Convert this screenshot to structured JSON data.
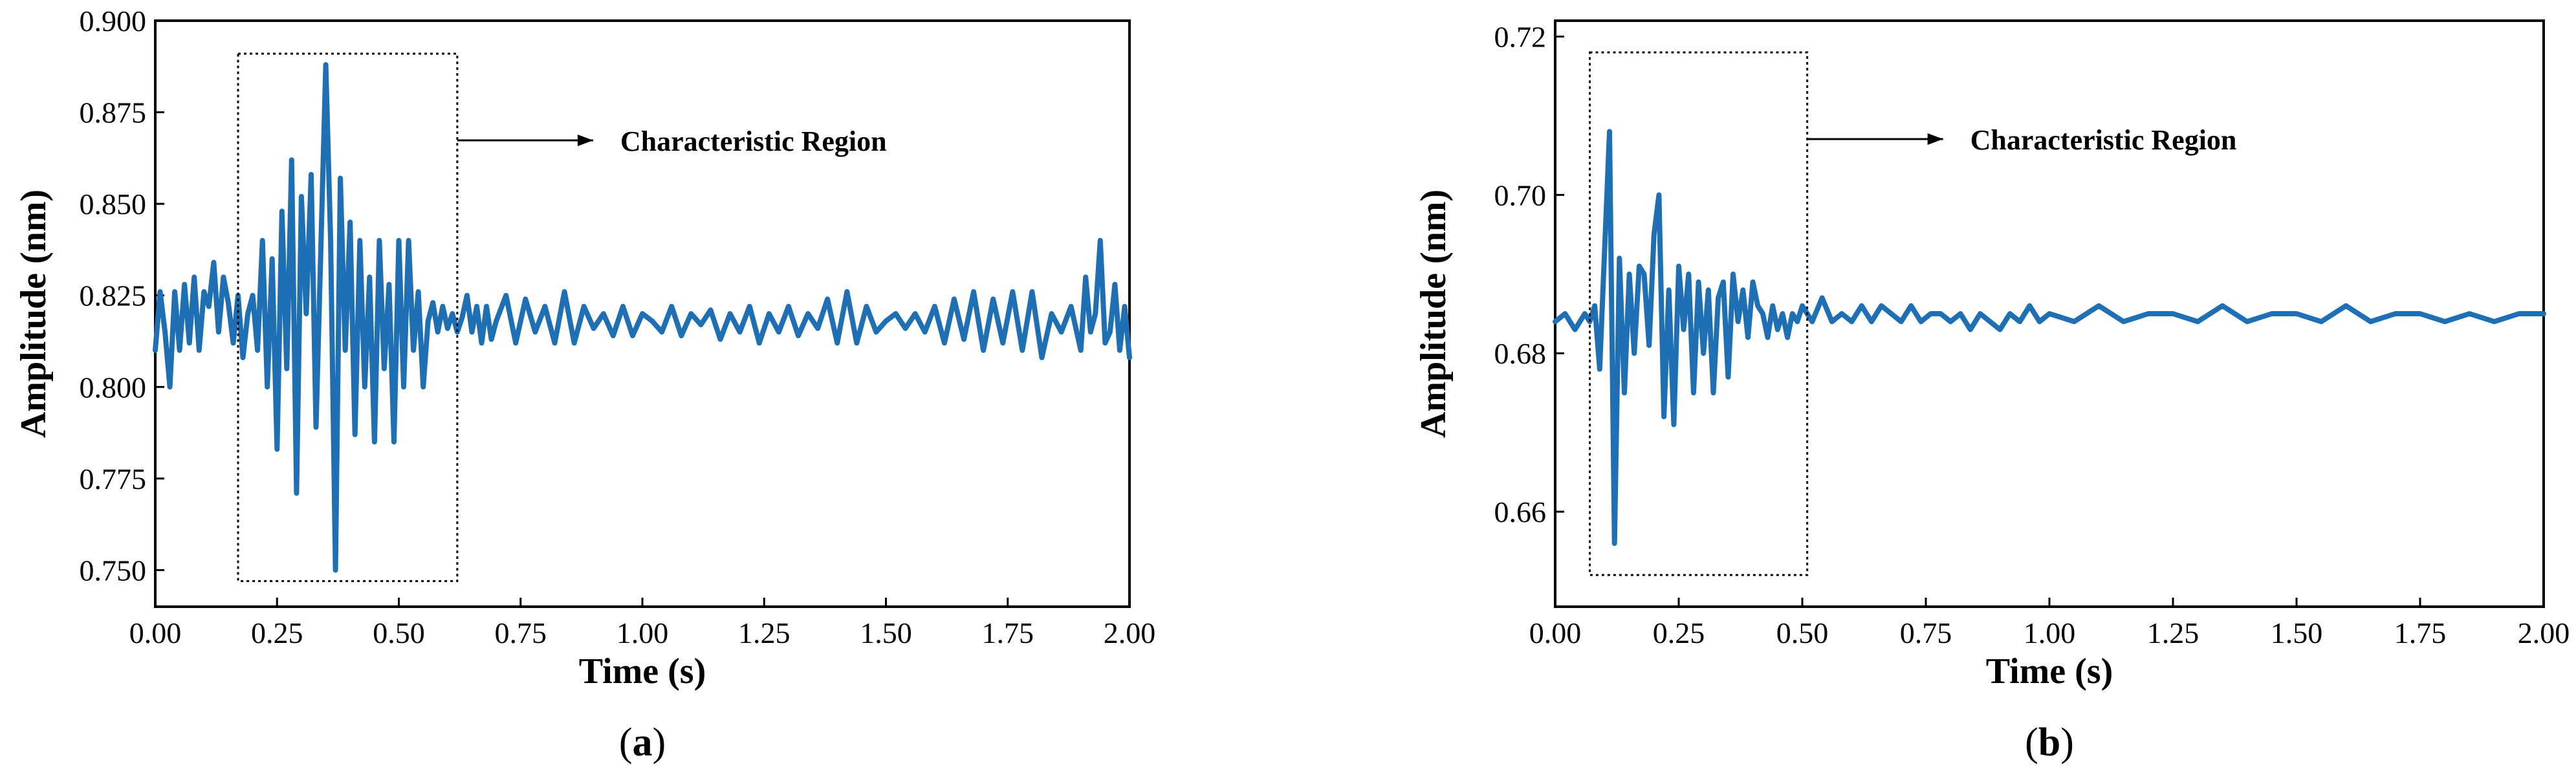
{
  "colors": {
    "series": "#1f6fb4",
    "axis": "#000000",
    "background": "#ffffff"
  },
  "chart_data": [
    {
      "panel_label_letter": "a",
      "type": "line",
      "xlabel": "Time (s)",
      "ylabel": "Amplitude (nm)",
      "xlim": [
        0,
        2
      ],
      "ylim": [
        0.74,
        0.9
      ],
      "xticks": [
        "0.00",
        "0.25",
        "0.50",
        "0.75",
        "1.00",
        "1.25",
        "1.50",
        "1.75",
        "2.00"
      ],
      "yticks": [
        "0.750",
        "0.775",
        "0.800",
        "0.825",
        "0.850",
        "0.875",
        "0.900"
      ],
      "annotation": {
        "text": "Characteristic Region",
        "region_x": [
          0.17,
          0.62
        ],
        "region_y": [
          0.747,
          0.891
        ]
      },
      "grid": false,
      "series": [
        {
          "x": [
            0,
            0.01,
            0.02,
            0.03,
            0.04,
            0.05,
            0.06,
            0.07,
            0.08,
            0.09,
            0.1,
            0.11,
            0.12,
            0.13,
            0.14,
            0.15,
            0.16,
            0.17,
            0.18,
            0.19,
            0.2,
            0.21,
            0.22,
            0.23,
            0.24,
            0.25,
            0.26,
            0.27,
            0.28,
            0.29,
            0.3,
            0.31,
            0.32,
            0.33,
            0.34,
            0.35,
            0.36,
            0.37,
            0.38,
            0.39,
            0.4,
            0.41,
            0.42,
            0.43,
            0.44,
            0.45,
            0.46,
            0.47,
            0.48,
            0.49,
            0.5,
            0.51,
            0.52,
            0.53,
            0.54,
            0.55,
            0.56,
            0.57,
            0.58,
            0.59,
            0.6,
            0.61,
            0.62,
            0.63,
            0.64,
            0.65,
            0.66,
            0.67,
            0.68,
            0.69,
            0.7,
            0.72,
            0.74,
            0.76,
            0.78,
            0.8,
            0.82,
            0.84,
            0.86,
            0.88,
            0.9,
            0.92,
            0.94,
            0.96,
            0.98,
            1.0,
            1.02,
            1.04,
            1.06,
            1.08,
            1.1,
            1.12,
            1.14,
            1.16,
            1.18,
            1.2,
            1.22,
            1.24,
            1.26,
            1.28,
            1.3,
            1.32,
            1.34,
            1.36,
            1.38,
            1.4,
            1.42,
            1.44,
            1.46,
            1.48,
            1.5,
            1.52,
            1.54,
            1.56,
            1.58,
            1.6,
            1.62,
            1.64,
            1.66,
            1.68,
            1.7,
            1.72,
            1.74,
            1.76,
            1.78,
            1.8,
            1.82,
            1.84,
            1.86,
            1.88,
            1.9,
            1.91,
            1.92,
            1.93,
            1.94,
            1.95,
            1.96,
            1.97,
            1.98,
            1.99,
            2.0
          ],
          "y": [
            0.81,
            0.826,
            0.815,
            0.8,
            0.826,
            0.81,
            0.828,
            0.812,
            0.83,
            0.81,
            0.826,
            0.822,
            0.834,
            0.815,
            0.83,
            0.823,
            0.812,
            0.825,
            0.808,
            0.82,
            0.825,
            0.81,
            0.84,
            0.8,
            0.835,
            0.783,
            0.848,
            0.805,
            0.862,
            0.771,
            0.852,
            0.82,
            0.858,
            0.789,
            0.838,
            0.888,
            0.84,
            0.75,
            0.857,
            0.81,
            0.845,
            0.787,
            0.84,
            0.8,
            0.83,
            0.785,
            0.84,
            0.805,
            0.828,
            0.785,
            0.84,
            0.8,
            0.84,
            0.81,
            0.826,
            0.8,
            0.818,
            0.823,
            0.815,
            0.822,
            0.816,
            0.82,
            0.815,
            0.819,
            0.825,
            0.815,
            0.822,
            0.812,
            0.822,
            0.813,
            0.818,
            0.825,
            0.812,
            0.824,
            0.815,
            0.822,
            0.812,
            0.826,
            0.812,
            0.822,
            0.816,
            0.82,
            0.814,
            0.822,
            0.814,
            0.82,
            0.818,
            0.815,
            0.822,
            0.814,
            0.82,
            0.817,
            0.821,
            0.813,
            0.82,
            0.815,
            0.822,
            0.812,
            0.82,
            0.815,
            0.822,
            0.814,
            0.82,
            0.816,
            0.824,
            0.812,
            0.826,
            0.812,
            0.822,
            0.815,
            0.818,
            0.82,
            0.816,
            0.82,
            0.815,
            0.822,
            0.812,
            0.824,
            0.813,
            0.826,
            0.81,
            0.824,
            0.812,
            0.826,
            0.81,
            0.826,
            0.808,
            0.82,
            0.815,
            0.822,
            0.81,
            0.83,
            0.815,
            0.82,
            0.84,
            0.812,
            0.815,
            0.828,
            0.81,
            0.822,
            0.808
          ]
        }
      ]
    },
    {
      "panel_label_letter": "b",
      "type": "line",
      "xlabel": "Time (s)",
      "ylabel": "Amplitude (nm)",
      "xlim": [
        0,
        2
      ],
      "ylim": [
        0.648,
        0.722
      ],
      "xticks": [
        "0.00",
        "0.25",
        "0.50",
        "0.75",
        "1.00",
        "1.25",
        "1.50",
        "1.75",
        "2.00"
      ],
      "yticks": [
        "0.66",
        "0.68",
        "0.70",
        "0.72"
      ],
      "annotation": {
        "text": "Characteristic Region",
        "region_x": [
          0.07,
          0.51
        ],
        "region_y": [
          0.652,
          0.718
        ]
      },
      "grid": false,
      "series": [
        {
          "x": [
            0,
            0.02,
            0.04,
            0.06,
            0.07,
            0.08,
            0.09,
            0.1,
            0.11,
            0.12,
            0.13,
            0.14,
            0.15,
            0.16,
            0.17,
            0.18,
            0.19,
            0.2,
            0.21,
            0.22,
            0.23,
            0.24,
            0.25,
            0.26,
            0.27,
            0.28,
            0.29,
            0.3,
            0.31,
            0.32,
            0.33,
            0.34,
            0.35,
            0.36,
            0.37,
            0.38,
            0.39,
            0.4,
            0.41,
            0.42,
            0.43,
            0.44,
            0.45,
            0.46,
            0.47,
            0.48,
            0.49,
            0.5,
            0.52,
            0.54,
            0.56,
            0.58,
            0.6,
            0.62,
            0.64,
            0.66,
            0.68,
            0.7,
            0.72,
            0.74,
            0.76,
            0.78,
            0.8,
            0.82,
            0.84,
            0.86,
            0.88,
            0.9,
            0.92,
            0.94,
            0.96,
            0.98,
            1.0,
            1.05,
            1.1,
            1.15,
            1.2,
            1.25,
            1.3,
            1.35,
            1.4,
            1.45,
            1.5,
            1.55,
            1.6,
            1.65,
            1.7,
            1.75,
            1.8,
            1.85,
            1.9,
            1.95,
            2.0
          ],
          "y": [
            0.684,
            0.685,
            0.683,
            0.685,
            0.684,
            0.686,
            0.678,
            0.693,
            0.708,
            0.656,
            0.692,
            0.675,
            0.69,
            0.68,
            0.691,
            0.69,
            0.681,
            0.695,
            0.7,
            0.672,
            0.688,
            0.671,
            0.691,
            0.683,
            0.69,
            0.675,
            0.689,
            0.68,
            0.688,
            0.675,
            0.687,
            0.689,
            0.677,
            0.69,
            0.684,
            0.688,
            0.682,
            0.689,
            0.686,
            0.685,
            0.682,
            0.686,
            0.683,
            0.685,
            0.682,
            0.685,
            0.684,
            0.686,
            0.684,
            0.687,
            0.684,
            0.685,
            0.684,
            0.686,
            0.684,
            0.686,
            0.685,
            0.684,
            0.686,
            0.684,
            0.685,
            0.685,
            0.684,
            0.685,
            0.683,
            0.685,
            0.684,
            0.683,
            0.685,
            0.684,
            0.686,
            0.684,
            0.685,
            0.684,
            0.686,
            0.684,
            0.685,
            0.685,
            0.684,
            0.686,
            0.684,
            0.685,
            0.685,
            0.684,
            0.686,
            0.684,
            0.685,
            0.685,
            0.684,
            0.685,
            0.684,
            0.685,
            0.685
          ]
        }
      ]
    }
  ]
}
